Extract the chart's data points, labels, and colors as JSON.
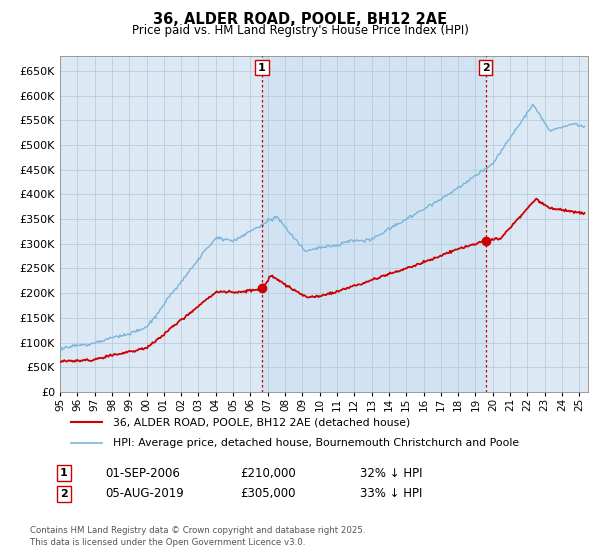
{
  "title": "36, ALDER ROAD, POOLE, BH12 2AE",
  "subtitle": "Price paid vs. HM Land Registry's House Price Index (HPI)",
  "ylim": [
    0,
    680000
  ],
  "yticks": [
    0,
    50000,
    100000,
    150000,
    200000,
    250000,
    300000,
    350000,
    400000,
    450000,
    500000,
    550000,
    600000,
    650000
  ],
  "xlim_start": 1995.0,
  "xlim_end": 2025.5,
  "hpi_color": "#7ab4d8",
  "price_color": "#cc0000",
  "vline_color": "#cc0000",
  "plot_bg_color": "#dce9f5",
  "purchase1_year": 2006.67,
  "purchase1_price": 210000,
  "purchase2_year": 2019.58,
  "purchase2_price": 305000,
  "legend_label_price": "36, ALDER ROAD, POOLE, BH12 2AE (detached house)",
  "legend_label_hpi": "HPI: Average price, detached house, Bournemouth Christchurch and Poole",
  "footnote": "Contains HM Land Registry data © Crown copyright and database right 2025.\nThis data is licensed under the Open Government Licence v3.0.",
  "background_color": "#ffffff",
  "grid_color": "#b0c8d8"
}
